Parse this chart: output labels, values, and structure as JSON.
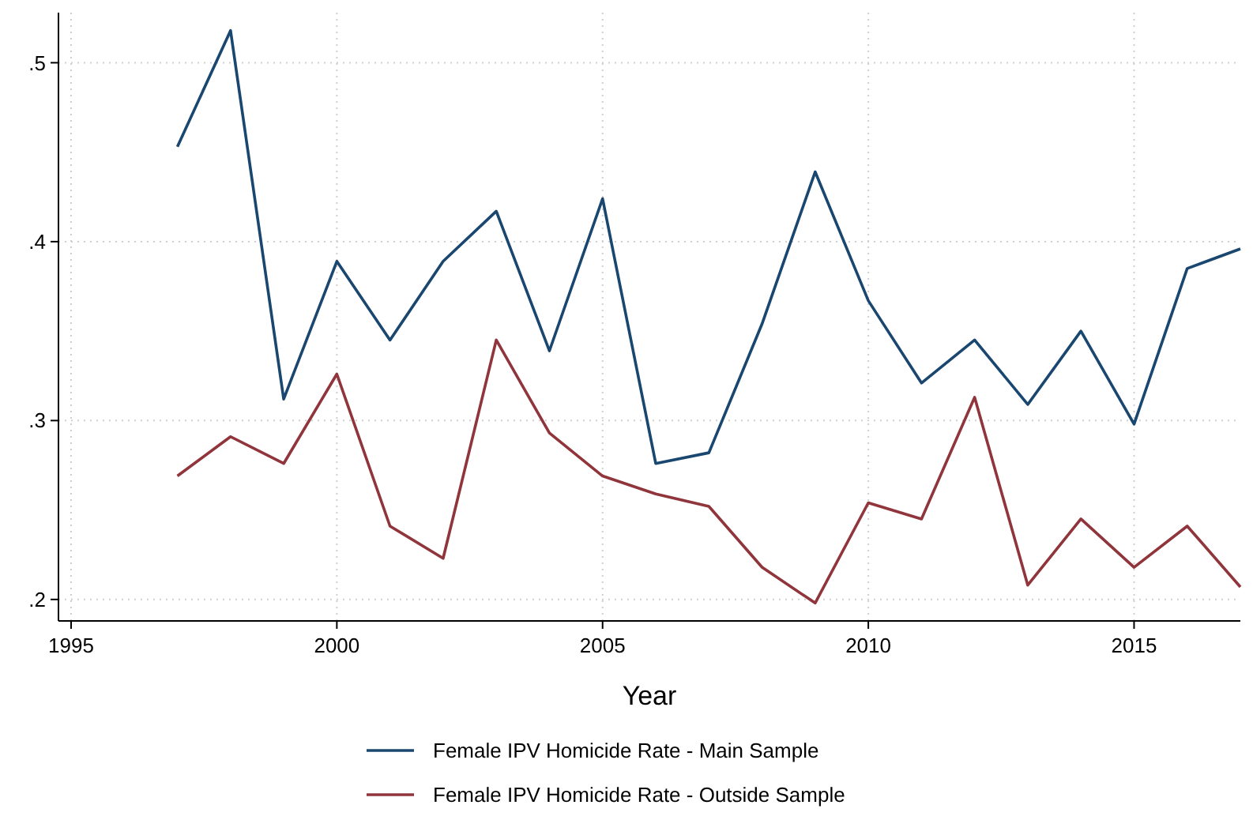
{
  "chart_data": {
    "type": "line",
    "xlabel": "Year",
    "x": [
      1997,
      1998,
      1999,
      2000,
      2001,
      2002,
      2003,
      2004,
      2005,
      2006,
      2007,
      2008,
      2009,
      2010,
      2011,
      2012,
      2013,
      2014,
      2015,
      2016,
      2017
    ],
    "series": [
      {
        "name": "Female IPV Homicide Rate - Main Sample",
        "color": "#1a476f",
        "values": [
          0.453,
          0.518,
          0.312,
          0.389,
          0.345,
          0.389,
          0.417,
          0.339,
          0.424,
          0.276,
          0.282,
          0.354,
          0.439,
          0.367,
          0.321,
          0.345,
          0.309,
          0.35,
          0.298,
          0.385,
          0.396
        ]
      },
      {
        "name": "Female IPV Homicide Rate - Outside Sample",
        "color": "#90353b",
        "values": [
          0.269,
          0.291,
          0.276,
          0.326,
          0.241,
          0.223,
          0.345,
          0.293,
          0.269,
          0.259,
          0.252,
          0.218,
          0.198,
          0.254,
          0.245,
          0.313,
          0.208,
          0.245,
          0.218,
          0.241,
          0.207
        ]
      }
    ],
    "xlim": [
      1995,
      2017
    ],
    "xticks": [
      1995,
      2000,
      2005,
      2010,
      2015
    ],
    "ylim": [
      0.188,
      0.528
    ],
    "yticks": [
      {
        "value": 0.2,
        "label": ".2"
      },
      {
        "value": 0.3,
        "label": ".3"
      },
      {
        "value": 0.4,
        "label": ".4"
      },
      {
        "value": 0.5,
        "label": ".5"
      }
    ],
    "grid": true,
    "legend": "bottom",
    "marker": "none",
    "line_style": "solid"
  }
}
